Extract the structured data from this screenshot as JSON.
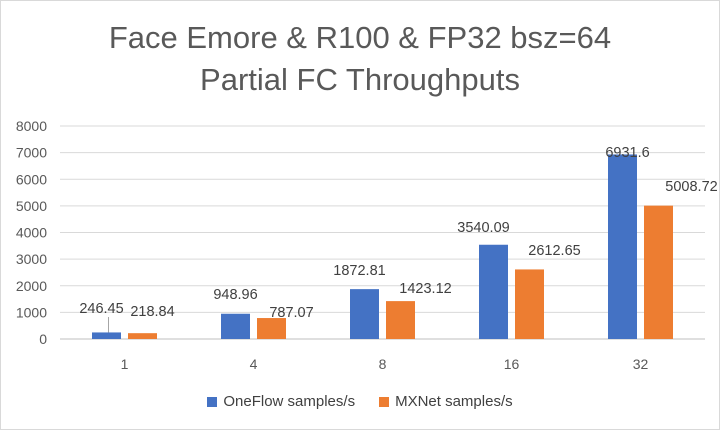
{
  "chart_data": {
    "type": "bar",
    "title_lines": [
      "Face Emore & R100 & FP32 bsz=64",
      "Partial FC Throughputs"
    ],
    "categories": [
      "1",
      "4",
      "8",
      "16",
      "32"
    ],
    "series": [
      {
        "name": "OneFlow samples/s",
        "color": "#4472C4",
        "values": [
          246.45,
          948.96,
          1872.81,
          3540.09,
          6931.6
        ],
        "labels": [
          "246.45",
          "948.96",
          "1872.81",
          "3540.09",
          "6931.6"
        ]
      },
      {
        "name": "MXNet samples/s",
        "color": "#ED7D31",
        "values": [
          218.84,
          787.07,
          1423.12,
          2612.65,
          5008.72
        ],
        "labels": [
          "218.84",
          "787.07",
          "1423.12",
          "2612.65",
          "5008.72"
        ]
      }
    ],
    "ylim": [
      0,
      8000
    ],
    "yticks": [
      "0",
      "1000",
      "2000",
      "3000",
      "4000",
      "5000",
      "6000",
      "7000",
      "8000"
    ],
    "grid": true,
    "legend_position": "bottom"
  }
}
